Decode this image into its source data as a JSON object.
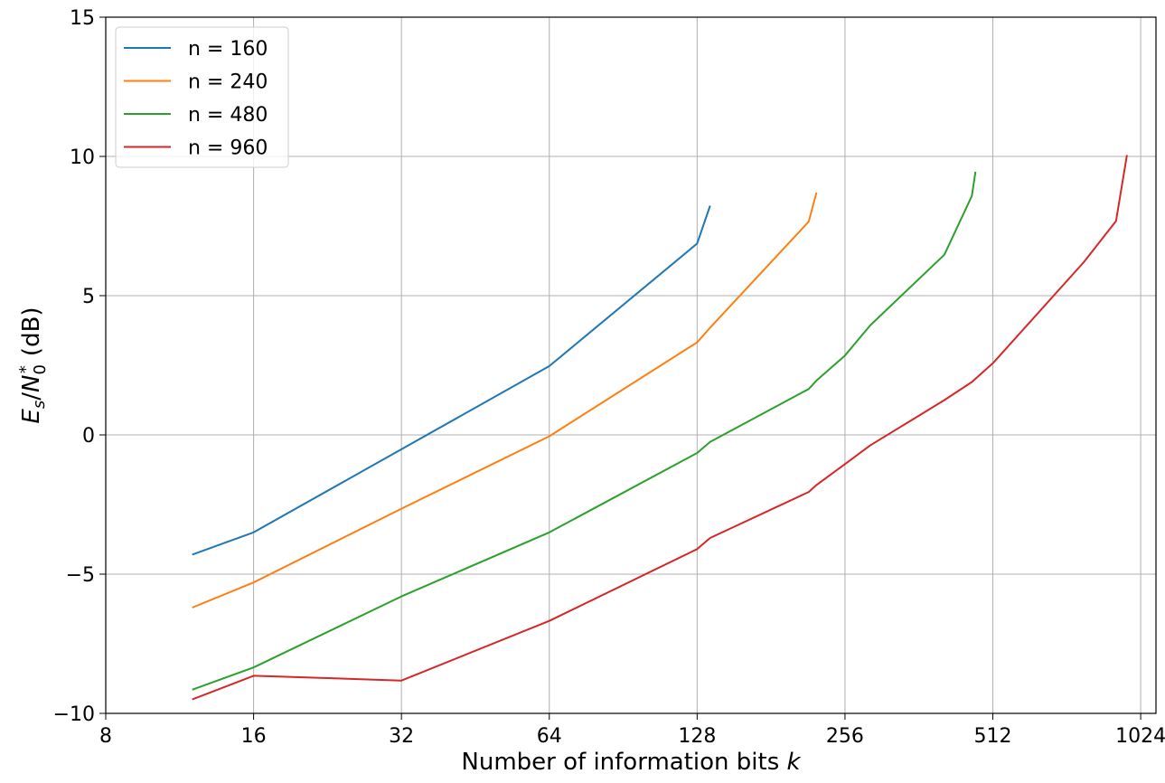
{
  "chart_data": {
    "type": "line",
    "xlabel": "Number of information bits",
    "xlabel_var": "k",
    "ylabel_var_E": "E",
    "ylabel_sub_s": "s",
    "ylabel_slash": "/",
    "ylabel_var_N": "N",
    "ylabel_sub_0": "0",
    "ylabel_sup": "*",
    "ylabel_unit": "(dB)",
    "x_scale": "log2",
    "xlim": [
      8,
      1100
    ],
    "ylim": [
      -10,
      15
    ],
    "x_ticks": [
      8,
      16,
      32,
      64,
      128,
      256,
      512,
      1024
    ],
    "x_tick_labels": [
      "8",
      "16",
      "32",
      "64",
      "128",
      "256",
      "512",
      "1024"
    ],
    "y_ticks": [
      -10,
      -5,
      0,
      5,
      10,
      15
    ],
    "y_tick_labels": [
      "−10",
      "−5",
      "0",
      "5",
      "10",
      "15"
    ],
    "grid": true,
    "legend_position": "top-left",
    "series": [
      {
        "name": "n = 160",
        "color": "#1f77b4",
        "x": [
          12,
          16,
          64,
          128,
          136
        ],
        "y": [
          -4.3,
          -3.5,
          2.47,
          6.87,
          8.23
        ]
      },
      {
        "name": "n = 240",
        "color": "#ff7f0e",
        "x": [
          12,
          16,
          32,
          64,
          128,
          136,
          216,
          224
        ],
        "y": [
          -6.2,
          -5.3,
          -2.65,
          -0.05,
          3.32,
          3.85,
          7.66,
          8.7
        ]
      },
      {
        "name": "n = 480",
        "color": "#2ca02c",
        "x": [
          12,
          16,
          32,
          64,
          128,
          136,
          216,
          224,
          256,
          288,
          408,
          464,
          472
        ],
        "y": [
          -9.15,
          -8.35,
          -5.8,
          -3.5,
          -0.65,
          -0.25,
          1.65,
          1.95,
          2.85,
          3.93,
          6.47,
          8.58,
          9.45
        ]
      },
      {
        "name": "n = 960",
        "color": "#d62728",
        "x": [
          12,
          16,
          32,
          64,
          128,
          136,
          216,
          224,
          256,
          288,
          408,
          464,
          512,
          784,
          912,
          960
        ],
        "y": [
          -9.5,
          -8.65,
          -8.82,
          -6.68,
          -4.1,
          -3.7,
          -2.05,
          -1.8,
          -1.05,
          -0.38,
          1.25,
          1.9,
          2.57,
          6.2,
          7.68,
          10.05
        ]
      }
    ]
  }
}
